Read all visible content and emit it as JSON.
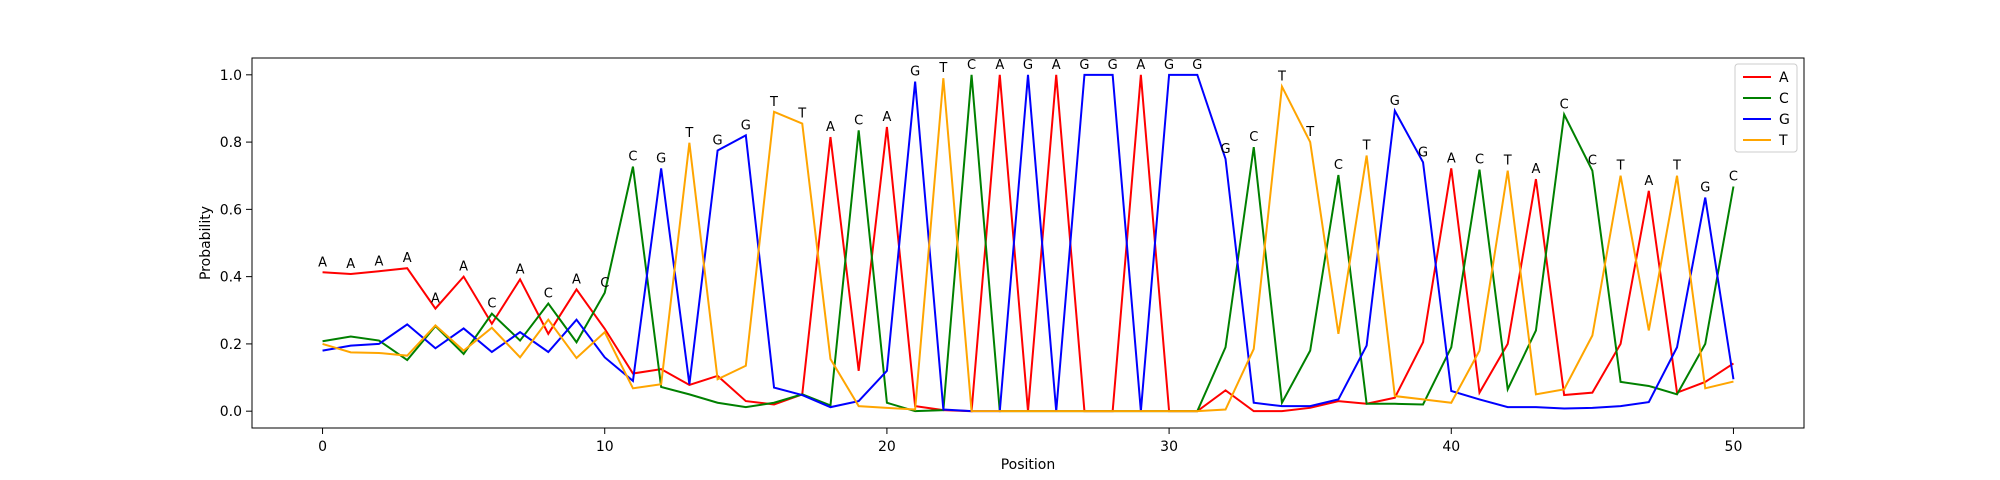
{
  "chart_data": {
    "type": "line",
    "title": "",
    "xlabel": "Position",
    "ylabel": "Probability",
    "xlim": [
      -2.5,
      52.5
    ],
    "ylim": [
      -0.05,
      1.05
    ],
    "xticks": [
      0,
      10,
      20,
      30,
      40,
      50
    ],
    "yticks": [
      0.0,
      0.2,
      0.4,
      0.6,
      0.8,
      1.0
    ],
    "xtick_labels": [
      "0",
      "10",
      "20",
      "30",
      "40",
      "50"
    ],
    "ytick_labels": [
      "0.0",
      "0.2",
      "0.4",
      "0.6",
      "0.8",
      "1.0"
    ],
    "grid": false,
    "legend_position": "top-right",
    "x": [
      0,
      1,
      2,
      3,
      4,
      5,
      6,
      7,
      8,
      9,
      10,
      11,
      12,
      13,
      14,
      15,
      16,
      17,
      18,
      19,
      20,
      21,
      22,
      23,
      24,
      25,
      26,
      27,
      28,
      29,
      30,
      31,
      32,
      33,
      34,
      35,
      36,
      37,
      38,
      39,
      40,
      41,
      42,
      43,
      44,
      45,
      46,
      47,
      48,
      49,
      50
    ],
    "series": [
      {
        "name": "A",
        "color": "#ff0000",
        "values": [
          0.413,
          0.408,
          0.416,
          0.425,
          0.305,
          0.4,
          0.26,
          0.392,
          0.23,
          0.362,
          0.245,
          0.112,
          0.125,
          0.078,
          0.105,
          0.03,
          0.02,
          0.05,
          0.815,
          0.12,
          0.845,
          0.015,
          0.003,
          0.0,
          1.0,
          0.0,
          1.0,
          0.0,
          0.0,
          1.0,
          0.0,
          0.0,
          0.062,
          0.0,
          0.0,
          0.01,
          0.03,
          0.022,
          0.04,
          0.205,
          0.722,
          0.055,
          0.2,
          0.69,
          0.048,
          0.055,
          0.2,
          0.655,
          0.055,
          0.087,
          0.142
        ]
      },
      {
        "name": "C",
        "color": "#008000",
        "values": [
          0.208,
          0.222,
          0.21,
          0.152,
          0.253,
          0.17,
          0.29,
          0.21,
          0.32,
          0.205,
          0.352,
          0.727,
          0.072,
          0.05,
          0.025,
          0.012,
          0.025,
          0.05,
          0.017,
          0.835,
          0.025,
          0.0,
          0.003,
          1.0,
          0.0,
          0.0,
          0.0,
          0.0,
          0.0,
          0.0,
          0.0,
          0.0,
          0.19,
          0.785,
          0.025,
          0.18,
          0.702,
          0.022,
          0.022,
          0.02,
          0.19,
          0.718,
          0.065,
          0.24,
          0.882,
          0.715,
          0.087,
          0.075,
          0.05,
          0.2,
          0.668
        ]
      },
      {
        "name": "G",
        "color": "#0000ff",
        "values": [
          0.18,
          0.195,
          0.2,
          0.258,
          0.187,
          0.246,
          0.176,
          0.235,
          0.176,
          0.272,
          0.16,
          0.09,
          0.722,
          0.08,
          0.775,
          0.82,
          0.07,
          0.048,
          0.012,
          0.03,
          0.12,
          0.98,
          0.005,
          0.0,
          0.0,
          1.0,
          0.0,
          1.0,
          1.0,
          0.0,
          1.0,
          1.0,
          0.75,
          0.025,
          0.015,
          0.015,
          0.035,
          0.195,
          0.893,
          0.74,
          0.06,
          0.035,
          0.012,
          0.012,
          0.008,
          0.01,
          0.015,
          0.027,
          0.19,
          0.635,
          0.095
        ]
      },
      {
        "name": "T",
        "color": "#ffa500",
        "values": [
          0.2,
          0.175,
          0.173,
          0.165,
          0.255,
          0.18,
          0.248,
          0.16,
          0.272,
          0.158,
          0.235,
          0.068,
          0.08,
          0.798,
          0.095,
          0.135,
          0.89,
          0.855,
          0.155,
          0.015,
          0.01,
          0.005,
          0.99,
          0.0,
          0.0,
          0.0,
          0.0,
          0.0,
          0.0,
          0.0,
          0.0,
          0.0,
          0.005,
          0.185,
          0.965,
          0.8,
          0.23,
          0.76,
          0.045,
          0.035,
          0.025,
          0.18,
          0.715,
          0.05,
          0.065,
          0.225,
          0.7,
          0.24,
          0.7,
          0.068,
          0.088
        ]
      }
    ],
    "annotations": [
      {
        "x": 0,
        "y": 0.413,
        "text": "A"
      },
      {
        "x": 1,
        "y": 0.408,
        "text": "A"
      },
      {
        "x": 2,
        "y": 0.416,
        "text": "A"
      },
      {
        "x": 3,
        "y": 0.425,
        "text": "A"
      },
      {
        "x": 4,
        "y": 0.305,
        "text": "A"
      },
      {
        "x": 5,
        "y": 0.4,
        "text": "A"
      },
      {
        "x": 6,
        "y": 0.29,
        "text": "C"
      },
      {
        "x": 7,
        "y": 0.392,
        "text": "A"
      },
      {
        "x": 8,
        "y": 0.32,
        "text": "C"
      },
      {
        "x": 9,
        "y": 0.362,
        "text": "A"
      },
      {
        "x": 10,
        "y": 0.352,
        "text": "C"
      },
      {
        "x": 11,
        "y": 0.727,
        "text": "C"
      },
      {
        "x": 12,
        "y": 0.722,
        "text": "G"
      },
      {
        "x": 13,
        "y": 0.798,
        "text": "T"
      },
      {
        "x": 14,
        "y": 0.775,
        "text": "G"
      },
      {
        "x": 15,
        "y": 0.82,
        "text": "G"
      },
      {
        "x": 16,
        "y": 0.89,
        "text": "T"
      },
      {
        "x": 17,
        "y": 0.855,
        "text": "T"
      },
      {
        "x": 18,
        "y": 0.815,
        "text": "A"
      },
      {
        "x": 19,
        "y": 0.835,
        "text": "C"
      },
      {
        "x": 20,
        "y": 0.845,
        "text": "A"
      },
      {
        "x": 21,
        "y": 0.98,
        "text": "G"
      },
      {
        "x": 22,
        "y": 0.99,
        "text": "T"
      },
      {
        "x": 23,
        "y": 1.0,
        "text": "C"
      },
      {
        "x": 24,
        "y": 1.0,
        "text": "A"
      },
      {
        "x": 25,
        "y": 1.0,
        "text": "G"
      },
      {
        "x": 26,
        "y": 1.0,
        "text": "A"
      },
      {
        "x": 27,
        "y": 1.0,
        "text": "G"
      },
      {
        "x": 28,
        "y": 1.0,
        "text": "G"
      },
      {
        "x": 29,
        "y": 1.0,
        "text": "A"
      },
      {
        "x": 30,
        "y": 1.0,
        "text": "G"
      },
      {
        "x": 31,
        "y": 1.0,
        "text": "G"
      },
      {
        "x": 32,
        "y": 0.75,
        "text": "G"
      },
      {
        "x": 33,
        "y": 0.785,
        "text": "C"
      },
      {
        "x": 34,
        "y": 0.965,
        "text": "T"
      },
      {
        "x": 35,
        "y": 0.8,
        "text": "T"
      },
      {
        "x": 36,
        "y": 0.702,
        "text": "C"
      },
      {
        "x": 37,
        "y": 0.76,
        "text": "T"
      },
      {
        "x": 38,
        "y": 0.893,
        "text": "G"
      },
      {
        "x": 39,
        "y": 0.74,
        "text": "G"
      },
      {
        "x": 40,
        "y": 0.722,
        "text": "A"
      },
      {
        "x": 41,
        "y": 0.718,
        "text": "C"
      },
      {
        "x": 42,
        "y": 0.715,
        "text": "T"
      },
      {
        "x": 43,
        "y": 0.69,
        "text": "A"
      },
      {
        "x": 44,
        "y": 0.882,
        "text": "C"
      },
      {
        "x": 45,
        "y": 0.715,
        "text": "C"
      },
      {
        "x": 46,
        "y": 0.7,
        "text": "T"
      },
      {
        "x": 47,
        "y": 0.655,
        "text": "A"
      },
      {
        "x": 48,
        "y": 0.7,
        "text": "T"
      },
      {
        "x": 49,
        "y": 0.635,
        "text": "G"
      },
      {
        "x": 50,
        "y": 0.668,
        "text": "C"
      }
    ]
  }
}
